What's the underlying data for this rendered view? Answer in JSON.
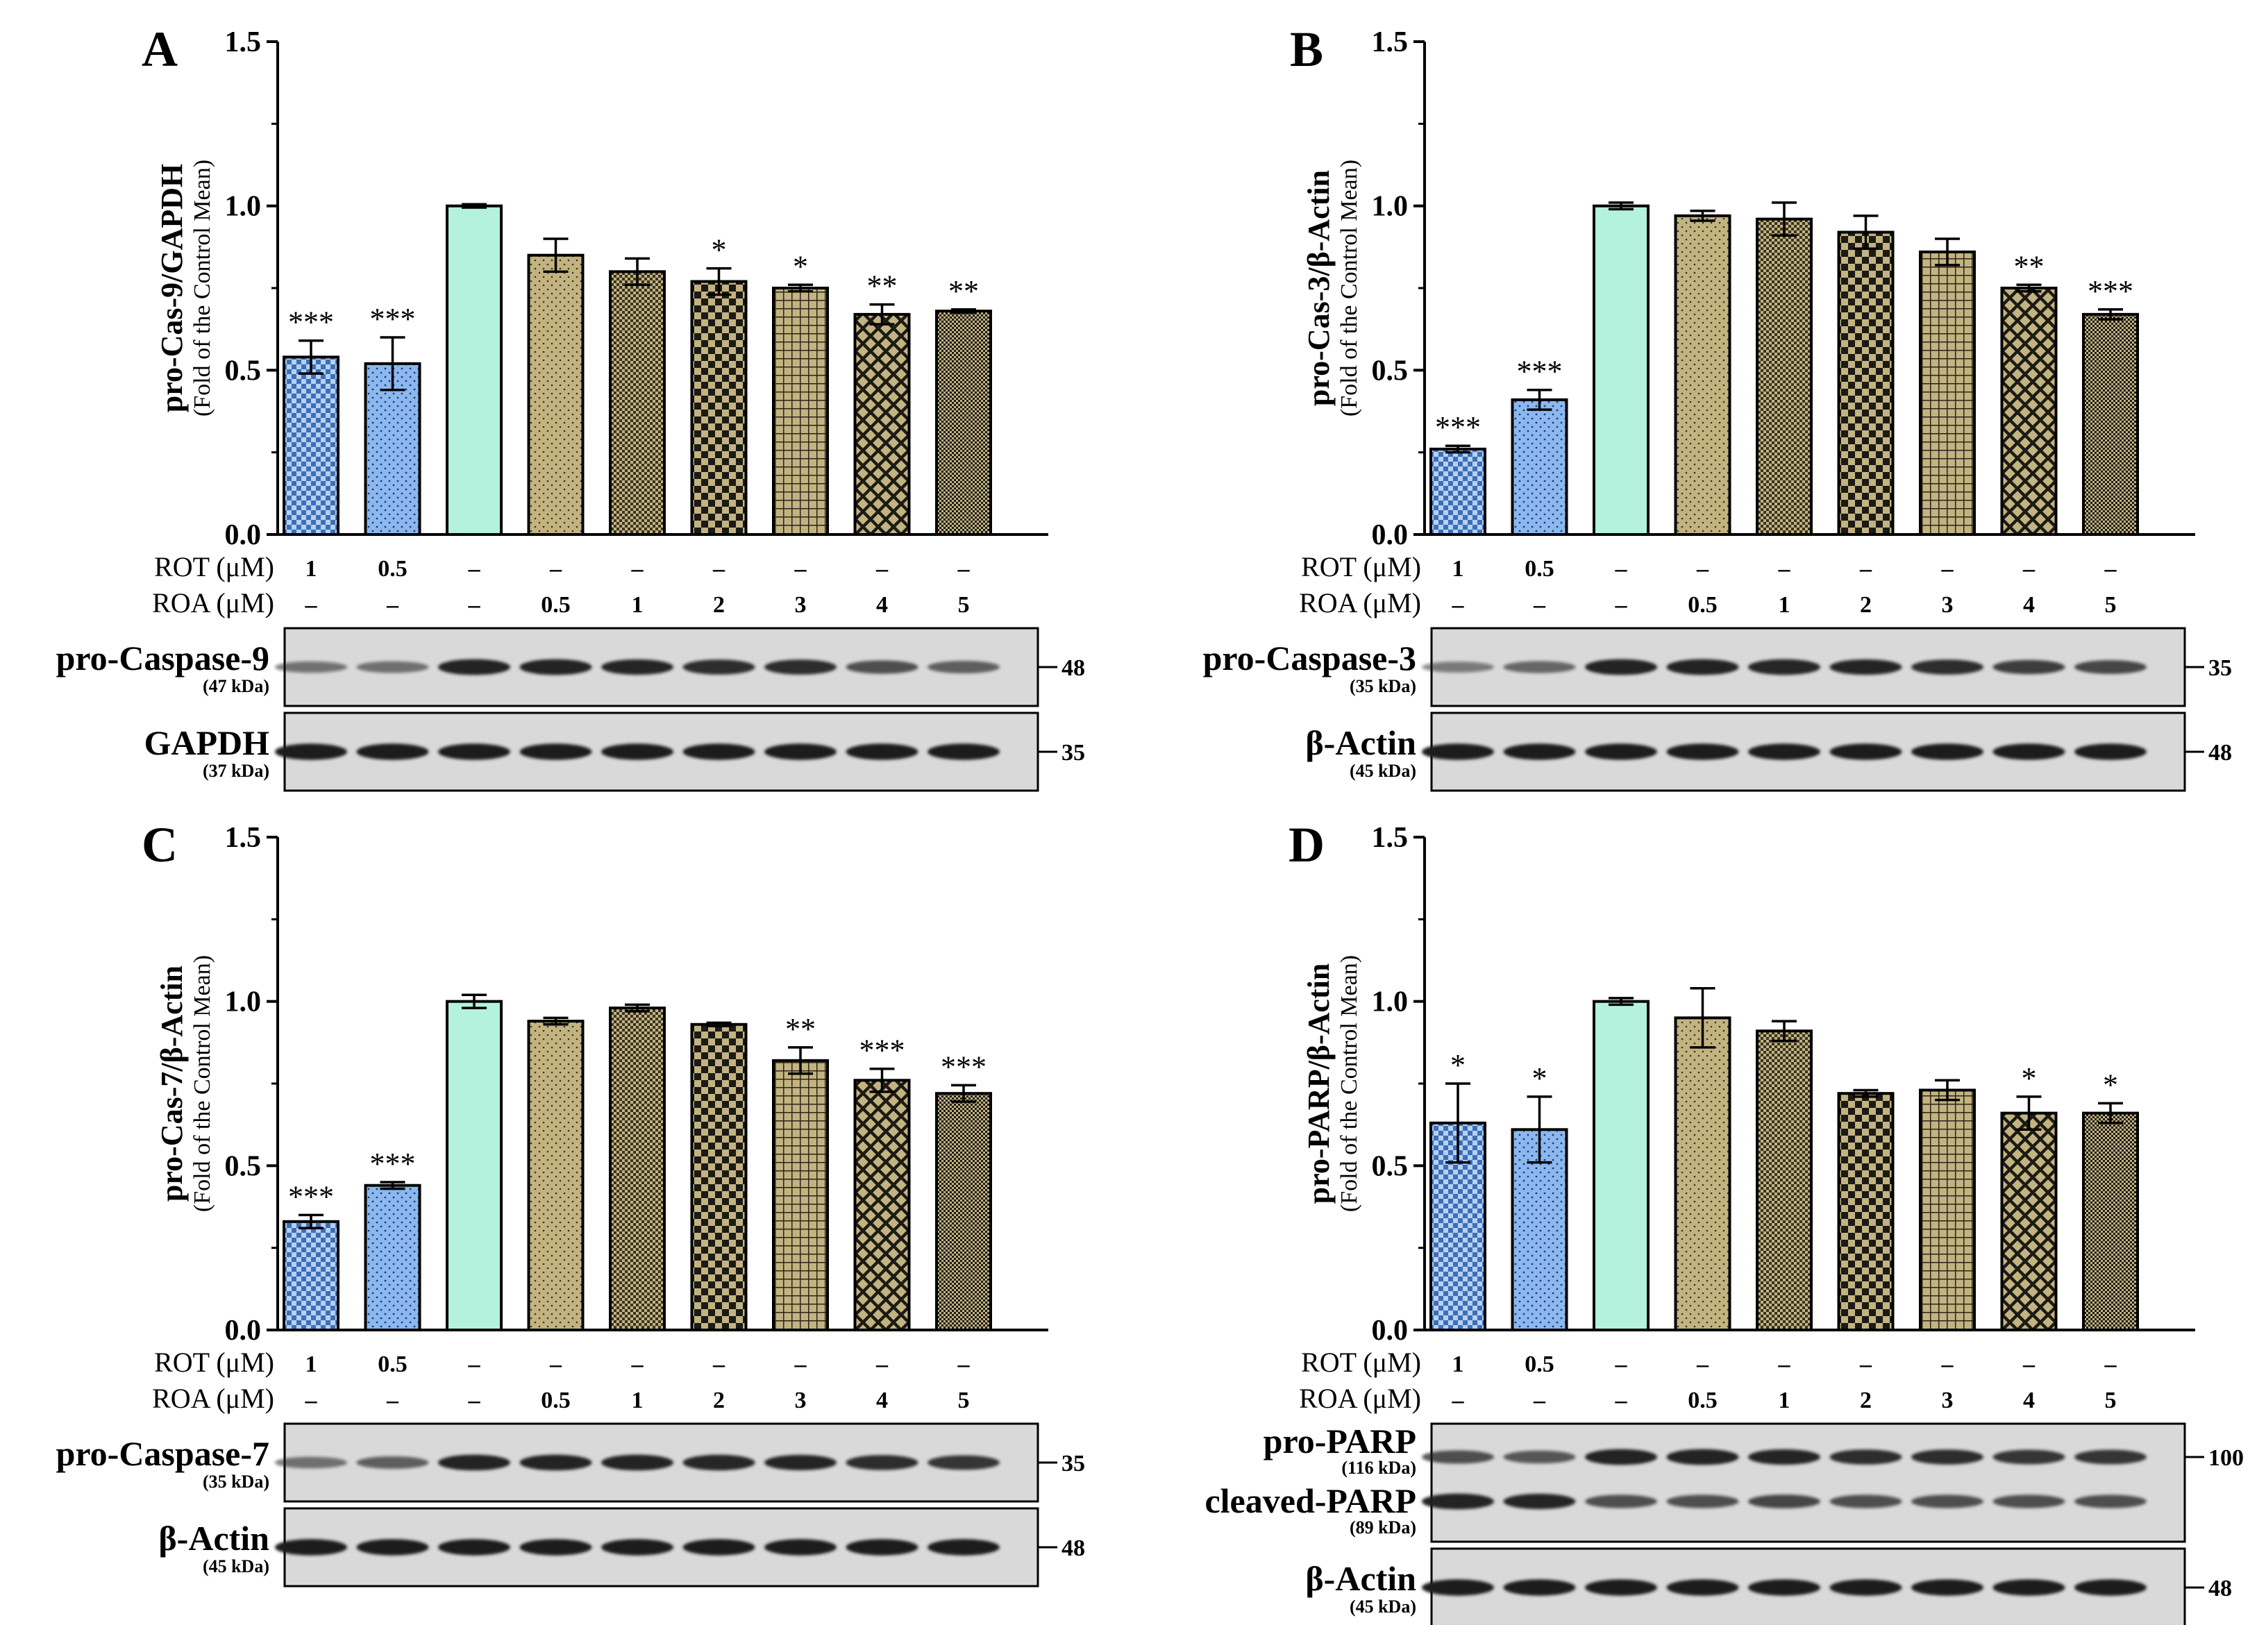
{
  "figure": {
    "row_labels": {
      "rot": "ROT (μM)",
      "roa": "ROA (μM)"
    },
    "rot_values": [
      "1",
      "0.5",
      "–",
      "–",
      "–",
      "–",
      "–",
      "–",
      "–"
    ],
    "roa_values": [
      "–",
      "–",
      "–",
      "0.5",
      "1",
      "2",
      "3",
      "4",
      "5"
    ],
    "colors": {
      "rot": "#3d6fb8",
      "rot_light": "#8cb8ef",
      "control": "#b4f2de",
      "roa": "#c2b381",
      "blot_bg": "#d9d9d9",
      "band": "#1a1a1a"
    }
  },
  "chart_data": [
    {
      "type": "bar",
      "panel": "A",
      "title": "",
      "ylabel": "pro-Cas-9/GAPDH",
      "ylabel_sub": "(Fold of the Control Mean)",
      "ylim": [
        0,
        1.5
      ],
      "yticks": [
        "0.0",
        "0.5",
        "1.0",
        "1.5"
      ],
      "categories": [
        "ROT 1",
        "ROT 0.5",
        "Control",
        "ROA 0.5",
        "ROA 1",
        "ROA 2",
        "ROA 3",
        "ROA 4",
        "ROA 5"
      ],
      "values": [
        0.54,
        0.52,
        1.0,
        0.85,
        0.8,
        0.77,
        0.75,
        0.67,
        0.68
      ],
      "errors": [
        0.05,
        0.08,
        0.005,
        0.05,
        0.04,
        0.04,
        0.01,
        0.03,
        0.005
      ],
      "significance": [
        "***",
        "***",
        "",
        "",
        "",
        "*",
        "*",
        "**",
        "**"
      ],
      "blots": [
        {
          "name": "pro-Caspase-9",
          "kda": "(47 kDa)",
          "marker": "48",
          "intensity": [
            0.35,
            0.4,
            0.9,
            0.9,
            0.85,
            0.8,
            0.8,
            0.6,
            0.5
          ]
        },
        {
          "name": "GAPDH",
          "kda": "(37 kDa)",
          "marker": "35",
          "intensity": [
            0.95,
            0.95,
            0.95,
            0.95,
            0.95,
            0.95,
            0.95,
            0.95,
            0.95
          ]
        }
      ]
    },
    {
      "type": "bar",
      "panel": "B",
      "title": "",
      "ylabel": "pro-Cas-3/β-Actin",
      "ylabel_sub": "(Fold of the Control Mean)",
      "ylim": [
        0,
        1.5
      ],
      "yticks": [
        "0.0",
        "0.5",
        "1.0",
        "1.5"
      ],
      "categories": [
        "ROT 1",
        "ROT 0.5",
        "Control",
        "ROA 0.5",
        "ROA 1",
        "ROA 2",
        "ROA 3",
        "ROA 4",
        "ROA 5"
      ],
      "values": [
        0.26,
        0.41,
        1.0,
        0.97,
        0.96,
        0.92,
        0.86,
        0.75,
        0.67
      ],
      "errors": [
        0.01,
        0.03,
        0.01,
        0.015,
        0.05,
        0.05,
        0.04,
        0.01,
        0.015
      ],
      "significance": [
        "***",
        "***",
        "",
        "",
        "",
        "",
        "",
        "**",
        "***"
      ],
      "blots": [
        {
          "name": "pro-Caspase-3",
          "kda": "(35 kDa)",
          "marker": "35",
          "intensity": [
            0.3,
            0.45,
            0.9,
            0.9,
            0.88,
            0.85,
            0.8,
            0.7,
            0.65
          ]
        },
        {
          "name": "β-Actin",
          "kda": "(45 kDa)",
          "marker": "48",
          "intensity": [
            0.95,
            0.95,
            0.95,
            0.95,
            0.95,
            0.95,
            0.95,
            0.95,
            0.95
          ]
        }
      ]
    },
    {
      "type": "bar",
      "panel": "C",
      "title": "",
      "ylabel": "pro-Cas-7/β-Actin",
      "ylabel_sub": "(Fold of the Control Mean)",
      "ylim": [
        0,
        1.5
      ],
      "yticks": [
        "0.0",
        "0.5",
        "1.0",
        "1.5"
      ],
      "categories": [
        "ROT 1",
        "ROT 0.5",
        "Control",
        "ROA 0.5",
        "ROA 1",
        "ROA 2",
        "ROA 3",
        "ROA 4",
        "ROA 5"
      ],
      "values": [
        0.33,
        0.44,
        1.0,
        0.94,
        0.98,
        0.93,
        0.82,
        0.76,
        0.72
      ],
      "errors": [
        0.02,
        0.01,
        0.02,
        0.01,
        0.01,
        0.005,
        0.04,
        0.035,
        0.025
      ],
      "significance": [
        "***",
        "***",
        "",
        "",
        "",
        "",
        "**",
        "***",
        "***"
      ],
      "blots": [
        {
          "name": "pro-Caspase-7",
          "kda": "(35 kDa)",
          "marker": "35",
          "intensity": [
            0.4,
            0.5,
            0.9,
            0.9,
            0.9,
            0.88,
            0.85,
            0.8,
            0.75
          ]
        },
        {
          "name": "β-Actin",
          "kda": "(45 kDa)",
          "marker": "48",
          "intensity": [
            0.95,
            0.95,
            0.95,
            0.95,
            0.95,
            0.95,
            0.95,
            0.95,
            0.95
          ]
        }
      ]
    },
    {
      "type": "bar",
      "panel": "D",
      "title": "",
      "ylabel": "pro-PARP/β-Actin",
      "ylabel_sub": "(Fold of the Control Mean)",
      "ylim": [
        0,
        1.5
      ],
      "yticks": [
        "0.0",
        "0.5",
        "1.0",
        "1.5"
      ],
      "categories": [
        "ROT 1",
        "ROT 0.5",
        "Control",
        "ROA 0.5",
        "ROA 1",
        "ROA 2",
        "ROA 3",
        "ROA 4",
        "ROA 5"
      ],
      "values": [
        0.63,
        0.61,
        1.0,
        0.95,
        0.91,
        0.72,
        0.73,
        0.66,
        0.66
      ],
      "errors": [
        0.12,
        0.1,
        0.01,
        0.09,
        0.03,
        0.01,
        0.03,
        0.05,
        0.03
      ],
      "significance": [
        "*",
        "*",
        "",
        "",
        "",
        "",
        "",
        "*",
        "*"
      ],
      "blots": [
        {
          "name": "pro-PARP",
          "kda": "(116 kDa)",
          "marker": "100",
          "double": true,
          "name2": "cleaved-PARP",
          "kda2": "(89 kDa)",
          "intensity": [
            0.6,
            0.55,
            0.9,
            0.9,
            0.85,
            0.8,
            0.8,
            0.75,
            0.75
          ],
          "intensity2": [
            0.9,
            0.85,
            0.6,
            0.6,
            0.65,
            0.6,
            0.6,
            0.6,
            0.6
          ]
        },
        {
          "name": "β-Actin",
          "kda": "(45 kDa)",
          "marker": "48",
          "intensity": [
            0.95,
            0.95,
            0.95,
            0.95,
            0.95,
            0.95,
            0.95,
            0.95,
            0.95
          ]
        }
      ]
    }
  ]
}
